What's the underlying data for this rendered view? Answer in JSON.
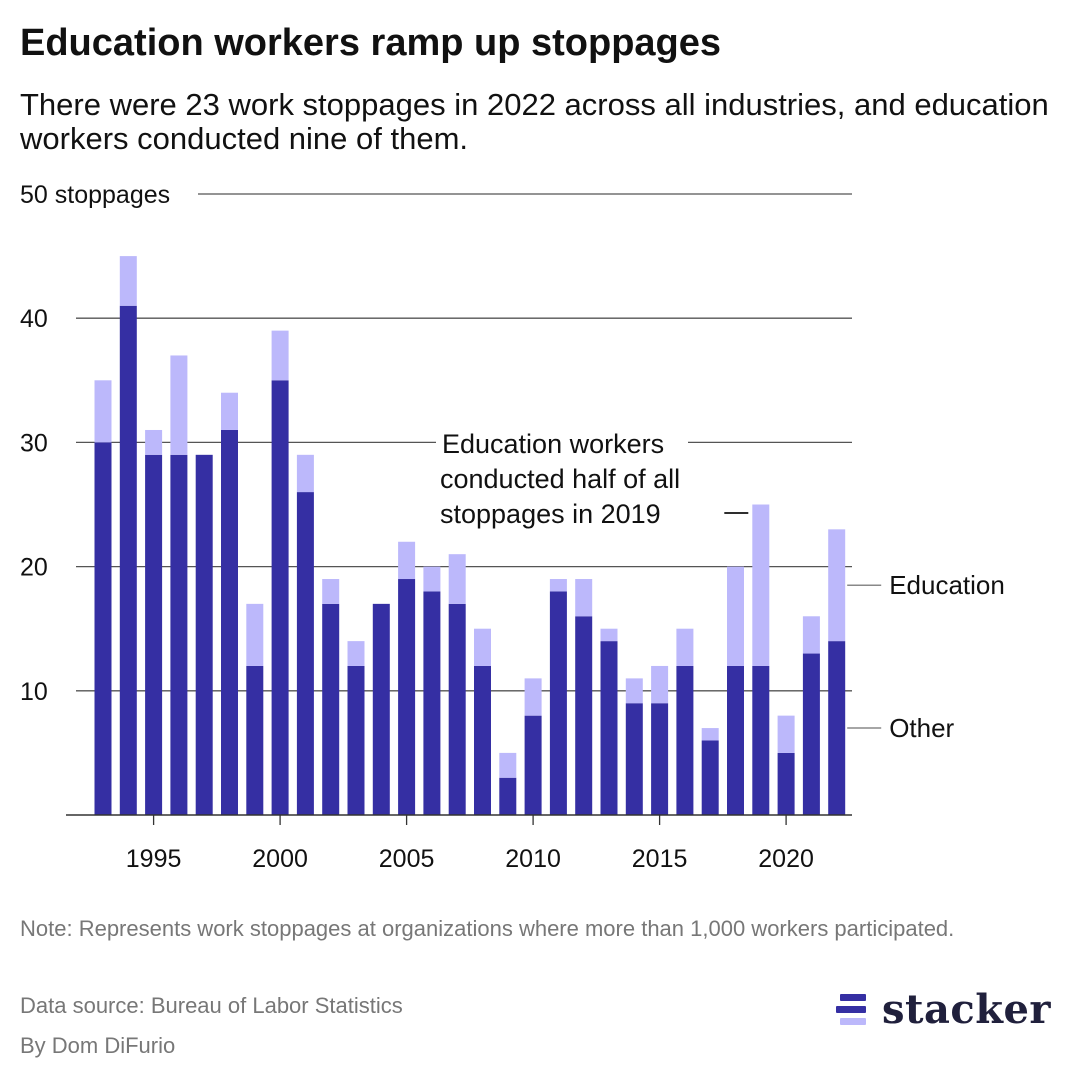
{
  "header": {
    "title": "Education workers ramp up stoppages",
    "subtitle": "There were 23 work stoppages in 2022 across all industries, and education workers conducted nine of them."
  },
  "footer": {
    "note": "Note: Represents work stoppages at organizations where more than 1,000 workers participated.",
    "source": "Data source: Bureau of Labor Statistics",
    "byline": "By Dom DiFurio"
  },
  "logo": {
    "text": "stacker",
    "icon": "stacker-stripes-icon"
  },
  "colors": {
    "other": "#352fa3",
    "education": "#bcb8fb",
    "grid": "#555555",
    "muted": "#777777",
    "logo": "#20203c"
  },
  "chart_data": {
    "type": "bar",
    "stacked": true,
    "x": [
      1993,
      1994,
      1995,
      1996,
      1997,
      1998,
      1999,
      2000,
      2001,
      2002,
      2003,
      2004,
      2005,
      2006,
      2007,
      2008,
      2009,
      2010,
      2011,
      2012,
      2013,
      2014,
      2015,
      2016,
      2017,
      2018,
      2019,
      2020,
      2021,
      2022
    ],
    "series": [
      {
        "name": "Other",
        "color": "#352fa3",
        "values": [
          30,
          41,
          29,
          29,
          29,
          31,
          12,
          35,
          26,
          17,
          12,
          17,
          19,
          18,
          17,
          12,
          3,
          8,
          18,
          16,
          14,
          9,
          9,
          12,
          6,
          12,
          12,
          5,
          13,
          14
        ]
      },
      {
        "name": "Education",
        "color": "#bcb8fb",
        "values": [
          5,
          4,
          2,
          8,
          0,
          3,
          5,
          4,
          3,
          2,
          2,
          0,
          3,
          2,
          4,
          3,
          2,
          3,
          1,
          3,
          1,
          2,
          3,
          3,
          1,
          8,
          13,
          3,
          3,
          9
        ]
      }
    ],
    "ylim": [
      0,
      50
    ],
    "yticks": [
      10,
      20,
      30,
      40,
      50
    ],
    "ytick_labels": [
      "10",
      "20",
      "30",
      "40",
      "50 stoppages"
    ],
    "xticks": [
      1995,
      2000,
      2005,
      2010,
      2015,
      2020
    ],
    "xtick_labels": [
      "1995",
      "2000",
      "2005",
      "2010",
      "2015",
      "2020"
    ],
    "grid": true,
    "legend": "direct labels at right",
    "annotations": [
      {
        "text_lines": [
          "Education workers",
          "conducted half of all",
          "stoppages in 2019"
        ],
        "target_x": 2019
      }
    ]
  }
}
